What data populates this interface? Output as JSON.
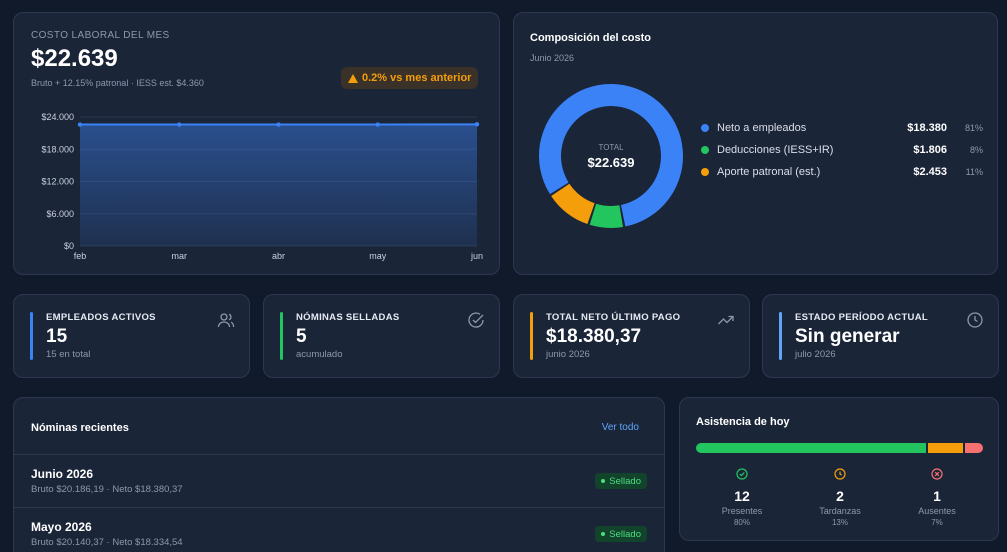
{
  "cost": {
    "label": "COSTO LABORAL DEL MES",
    "total": "$22.639",
    "subtitle": "Bruto + 12.15% patronal · IESS est. $4.360",
    "change": "0.2% vs mes anterior",
    "change_icon": "warning-triangle-icon",
    "chart_data": {
      "type": "area",
      "categories": [
        "feb",
        "mar",
        "abr",
        "may",
        "jun"
      ],
      "values": [
        22600,
        22600,
        22600,
        22600,
        22639
      ],
      "yticks": [
        "$0",
        "$6.000",
        "$12.000",
        "$18.000",
        "$24.000"
      ],
      "ylim": [
        0,
        24000
      ],
      "color": "#3b82f6"
    }
  },
  "composition": {
    "title": "Composición del costo",
    "subtitle": "Junio 2026",
    "center_label": "TOTAL",
    "center_value": "$22.639",
    "chart_data": {
      "type": "pie",
      "categories": [
        "Neto a empleados",
        "Deducciones (IESS+IR)",
        "Aporte patronal (est.)"
      ],
      "values": [
        18380,
        1806,
        2453
      ],
      "value_labels": [
        "$18.380",
        "$1.806",
        "$2.453"
      ],
      "percents": [
        "81%",
        "8%",
        "11%"
      ],
      "colors": [
        "#3b82f6",
        "#22c55e",
        "#f59e0b"
      ]
    }
  },
  "kpis": [
    {
      "label": "EMPLEADOS ACTIVOS",
      "value": "15",
      "sub": "15 en total",
      "color": "#3b82f6",
      "icon": "users-icon"
    },
    {
      "label": "NÓMINAS SELLADAS",
      "value": "5",
      "sub": "acumulado",
      "color": "#22c55e",
      "icon": "check-circle-icon"
    },
    {
      "label": "TOTAL NETO ÚLTIMO PAGO",
      "value": "$18.380,37",
      "sub": "junio 2026",
      "color": "#f59e0b",
      "icon": "trending-up-icon"
    },
    {
      "label": "ESTADO PERÍODO ACTUAL",
      "value": "Sin generar",
      "sub": "julio 2026",
      "color": "#60a5fa",
      "icon": "clock-icon"
    }
  ],
  "recent": {
    "title": "Nóminas recientes",
    "link": "Ver todo",
    "rows": [
      {
        "month": "Junio 2026",
        "detail": "Bruto $20.186,19 · Neto $18.380,37",
        "status": "Sellado"
      },
      {
        "month": "Mayo 2026",
        "detail": "Bruto $20.140,37 · Neto $18.334,54",
        "status": "Sellado"
      }
    ]
  },
  "attendance": {
    "title": "Asistencia de hoy",
    "stats": [
      {
        "count": "12",
        "label": "Presentes",
        "pct": "80%",
        "fraction": 0.8,
        "color": "#22c55e",
        "icon": "check-circle-icon"
      },
      {
        "count": "2",
        "label": "Tardanzas",
        "pct": "13%",
        "fraction": 0.13,
        "color": "#f59e0b",
        "icon": "clock-icon"
      },
      {
        "count": "1",
        "label": "Ausentes",
        "pct": "7%",
        "fraction": 0.07,
        "color": "#f87171",
        "icon": "x-circle-icon"
      }
    ]
  }
}
